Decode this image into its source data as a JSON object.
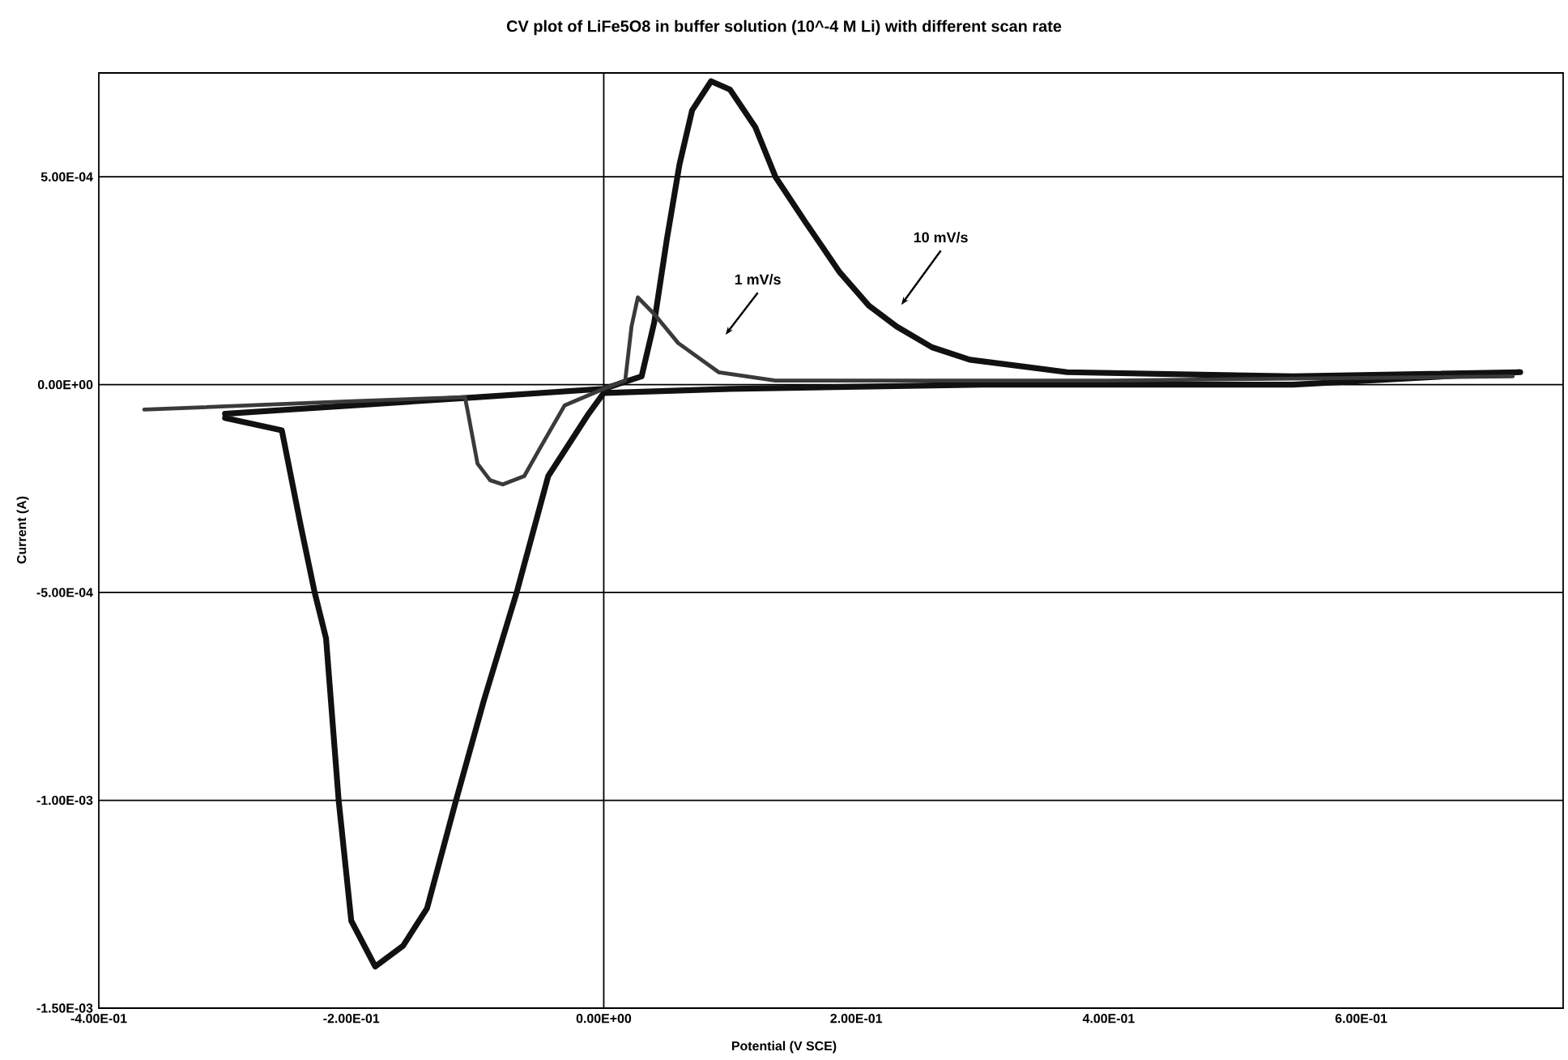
{
  "chart_data": {
    "type": "line",
    "title": "CV plot of LiFe5O8 in buffer solution (10^-4 M Li) with different scan rate",
    "xlabel": "Potential (V SCE)",
    "ylabel": "Current (A)",
    "xlim": [
      -0.4,
      0.76
    ],
    "ylim": [
      -0.0015,
      0.00075
    ],
    "xticks": [
      {
        "value": -0.4,
        "label": "-4.00E-01"
      },
      {
        "value": -0.2,
        "label": "-2.00E-01"
      },
      {
        "value": 0,
        "label": "0.00E+00"
      },
      {
        "value": 0.2,
        "label": "2.00E-01"
      },
      {
        "value": 0.4,
        "label": "4.00E-01"
      },
      {
        "value": 0.6,
        "label": "6.00E-01"
      }
    ],
    "yticks": [
      {
        "value": -0.0015,
        "label": "-1.50E-03"
      },
      {
        "value": -0.001,
        "label": "-1.00E-03"
      },
      {
        "value": -0.0005,
        "label": "-5.00E-04"
      },
      {
        "value": 0,
        "label": "0.00E+00"
      },
      {
        "value": 0.0005,
        "label": "5.00E-04"
      }
    ],
    "grid": "y",
    "line_style": "solid",
    "ref_lines": [
      {
        "axis": "x",
        "value": 0
      }
    ],
    "annotations": [
      "1 mV/s",
      "10 mV/s"
    ],
    "series": [
      {
        "color": "#111111",
        "x": [
          -0.3,
          -0.2,
          -0.1,
          0,
          0.03,
          0.04,
          0.05,
          0.06,
          0.07,
          0.085,
          0.1,
          0.12,
          0.136,
          0.16,
          0.187,
          0.21,
          0.232,
          0.26,
          0.29,
          0.367,
          0.546,
          0.726,
          0.546,
          0.3,
          0.1,
          0,
          -0.012,
          -0.044,
          -0.069,
          -0.095,
          -0.117,
          -0.14,
          -0.159,
          -0.181,
          -0.2,
          -0.21,
          -0.22,
          -0.229,
          -0.24,
          -0.255,
          -0.3
        ],
        "values": [
          -7e-05,
          -5e-05,
          -3e-05,
          -1e-05,
          2e-05,
          0.00015,
          0.00035,
          0.00053,
          0.00066,
          0.00073,
          0.00071,
          0.00062,
          0.0005,
          0.00039,
          0.00027,
          0.00019,
          0.00014,
          9e-05,
          6e-05,
          3e-05,
          2e-05,
          3e-05,
          0,
          0,
          -1e-05,
          -2e-05,
          -7e-05,
          -0.00022,
          -0.0005,
          -0.00076,
          -0.001,
          -0.00126,
          -0.00135,
          -0.0014,
          -0.00129,
          -0.001,
          -0.00061,
          -0.0005,
          -0.00034,
          -0.00011,
          -8e-05
        ]
      },
      {
        "color": "#3a3a3a",
        "x": [
          -0.364,
          -0.2,
          -0.11,
          -0.108,
          -0.1,
          -0.09,
          -0.08,
          -0.063,
          -0.05,
          -0.031,
          0,
          0.017,
          0.022,
          0.027,
          0.04,
          0.059,
          0.091,
          0.136,
          0.4,
          0.72
        ],
        "values": [
          -6e-05,
          -4e-05,
          -3e-05,
          -6e-05,
          -0.00019,
          -0.00023,
          -0.00024,
          -0.00022,
          -0.00015,
          -5e-05,
          -1e-05,
          1e-05,
          0.00014,
          0.00021,
          0.00017,
          0.0001,
          3e-05,
          1e-05,
          1e-05,
          2e-05
        ]
      }
    ]
  }
}
